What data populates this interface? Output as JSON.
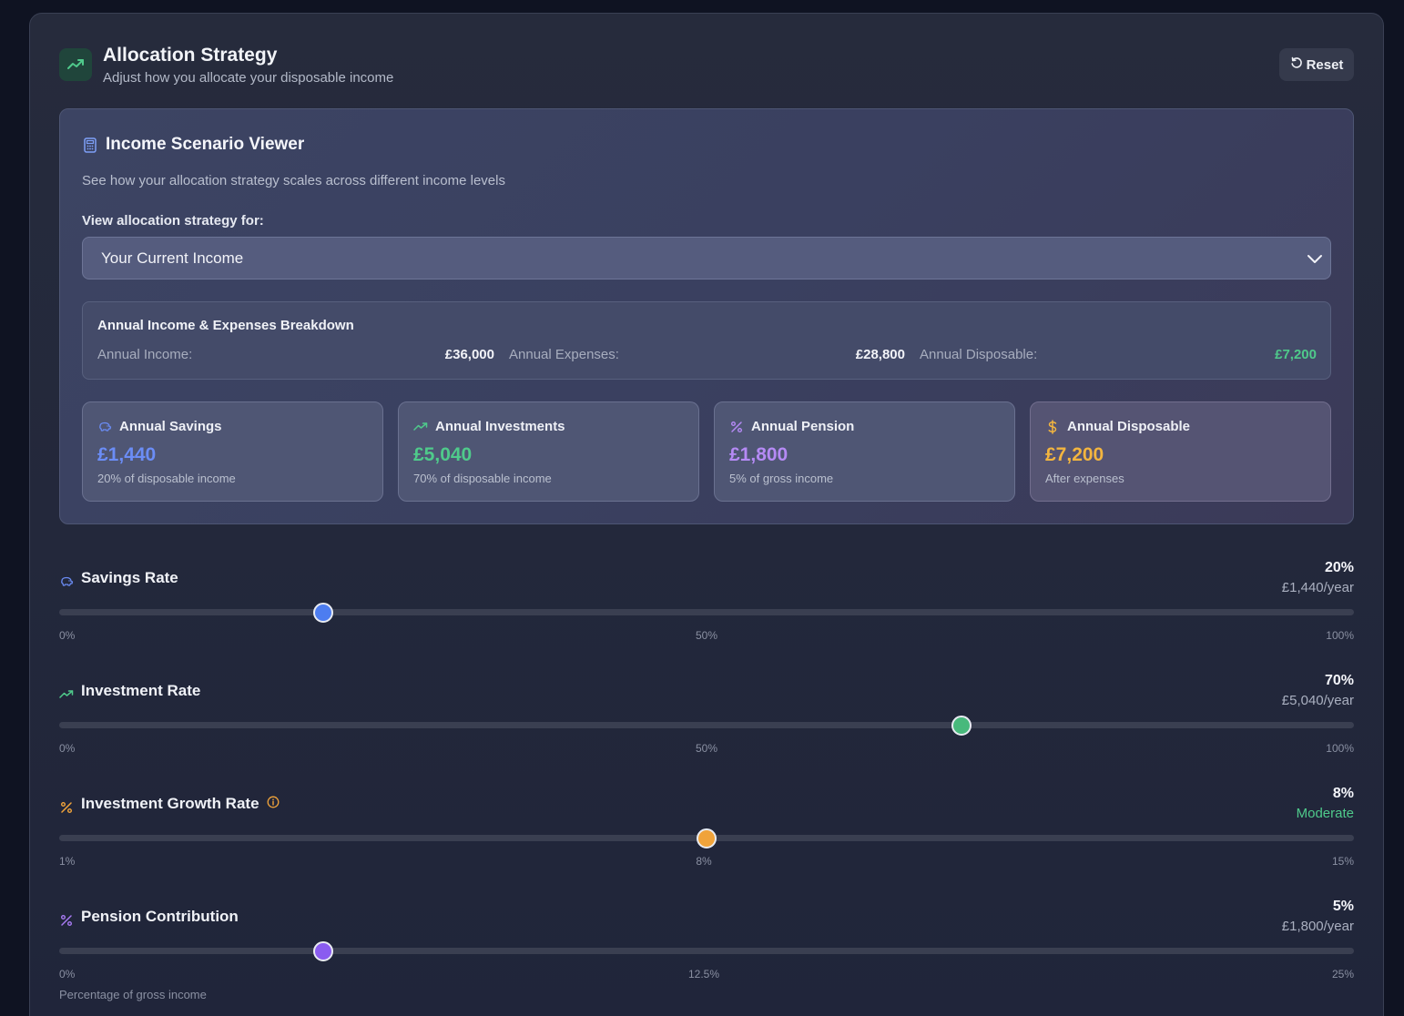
{
  "header": {
    "title": "Allocation Strategy",
    "subtitle": "Adjust how you allocate your disposable income",
    "reset_label": "Reset"
  },
  "scenario": {
    "title": "Income Scenario Viewer",
    "description": "See how your allocation strategy scales across different income levels",
    "select_label": "View allocation strategy for:",
    "selected_option": "Your Current Income",
    "breakdown": {
      "title": "Annual Income & Expenses Breakdown",
      "income_label": "Annual Income:",
      "income_value": "£36,000",
      "expenses_label": "Annual Expenses:",
      "expenses_value": "£28,800",
      "disposable_label": "Annual Disposable:",
      "disposable_value": "£7,200"
    },
    "cards": [
      {
        "title": "Annual Savings",
        "value": "£1,440",
        "sub": "20% of disposable income",
        "color": "#6b8df6",
        "icon": "piggy-bank-icon"
      },
      {
        "title": "Annual Investments",
        "value": "£5,040",
        "sub": "70% of disposable income",
        "color": "#4fca8b",
        "icon": "trending-up-icon"
      },
      {
        "title": "Annual Pension",
        "value": "£1,800",
        "sub": "5% of gross income",
        "color": "#b58af5",
        "icon": "percent-icon"
      },
      {
        "title": "Annual Disposable",
        "value": "£7,200",
        "sub": "After expenses",
        "color": "#f3b53f",
        "icon": "dollar-icon"
      }
    ]
  },
  "sliders": [
    {
      "title": "Savings Rate",
      "pct": "20%",
      "sub": "£1,440/year",
      "sub_color": "#aab0c0",
      "fraction": 0.204,
      "color": "#4d7df0",
      "icon": "piggy-bank-icon",
      "ticks": [
        "0%",
        "50%",
        "100%"
      ]
    },
    {
      "title": "Investment Rate",
      "pct": "70%",
      "sub": "£5,040/year",
      "sub_color": "#aab0c0",
      "fraction": 0.697,
      "color": "#48b97c",
      "icon": "trending-up-icon",
      "ticks": [
        "0%",
        "50%",
        "100%"
      ]
    },
    {
      "title": "Investment Growth Rate",
      "pct": "8%",
      "sub": "Moderate",
      "sub_color": "#4fca8b",
      "fraction": 0.5,
      "color": "#f0a33a",
      "icon": "percent-icon",
      "ticks": [
        "1%",
        "8%",
        "15%"
      ],
      "info": true
    },
    {
      "title": "Pension Contribution",
      "pct": "5%",
      "sub": "£1,800/year",
      "sub_color": "#aab0c0",
      "fraction": 0.204,
      "color": "#8a5cf0",
      "icon": "percent-icon",
      "ticks": [
        "0%",
        "12.5%",
        "25%"
      ],
      "footnote": "Percentage of gross income"
    }
  ],
  "colors": {
    "green": "#4fca8b",
    "orange": "#f0a33a",
    "purple": "#a77af2",
    "blue": "#6b8df6"
  }
}
